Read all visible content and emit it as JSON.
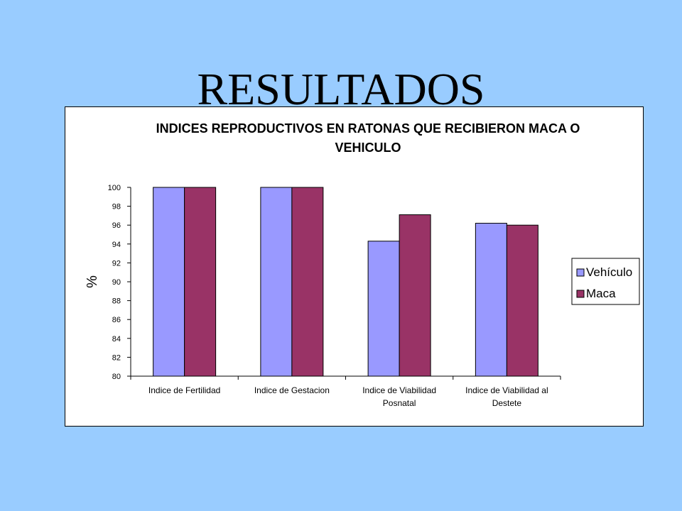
{
  "slide": {
    "title": "RESULTADOS"
  },
  "colors": {
    "background": "#99ccff",
    "vehiculo": "#9999ff",
    "maca": "#993366"
  },
  "chart_data": {
    "type": "bar",
    "title_lines": [
      "INDICES REPRODUCTIVOS EN RATONAS QUE RECIBIERON MACA O",
      "VEHICULO"
    ],
    "ylabel": "%",
    "xlabel": "",
    "ylim": [
      80,
      100
    ],
    "yticks": [
      80,
      82,
      84,
      86,
      88,
      90,
      92,
      94,
      96,
      98,
      100
    ],
    "categories": [
      [
        "Indice de Fertilidad"
      ],
      [
        "Indice de Gestacion"
      ],
      [
        "Indice de Viabilidad",
        "Posnatal"
      ],
      [
        "Indice de Viabilidad al",
        "Destete"
      ]
    ],
    "series": [
      {
        "name": "Vehículo",
        "color": "#9999ff",
        "values": [
          100,
          100,
          94.3,
          96.2
        ]
      },
      {
        "name": "Maca",
        "color": "#993366",
        "values": [
          100,
          100,
          97.1,
          96.0
        ]
      }
    ],
    "legend_position": "right",
    "grid": false
  }
}
